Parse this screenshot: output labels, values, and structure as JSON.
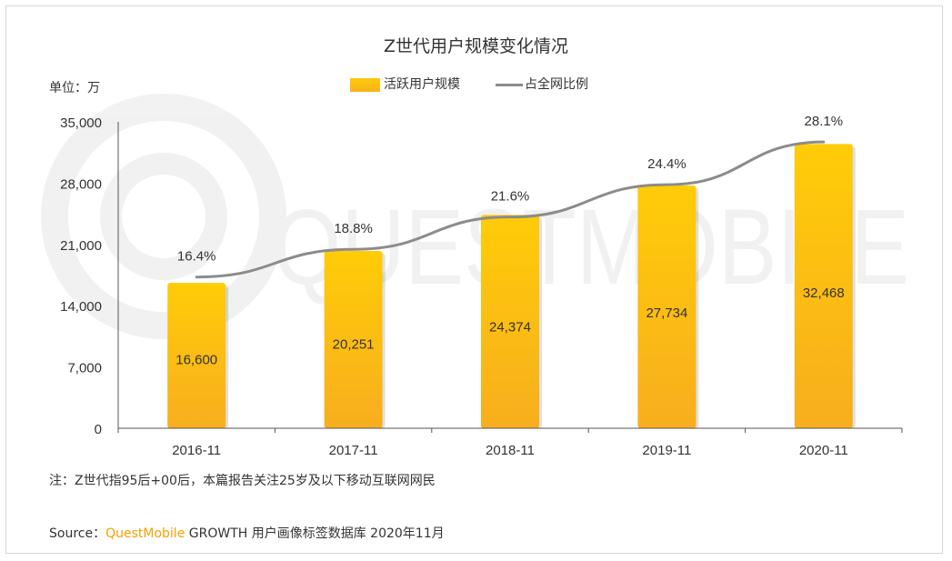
{
  "title": "Z世代用户规模变化情况",
  "unit_label": "单位：万",
  "legend": {
    "bar_label": "活跃用户规模",
    "line_label": "占全网比例"
  },
  "chart_data": {
    "type": "bar",
    "title": "Z世代用户规模变化情况",
    "xlabel": "",
    "ylabel": "单位：万",
    "categories": [
      "2016-11",
      "2017-11",
      "2018-11",
      "2019-11",
      "2020-11"
    ],
    "series": [
      {
        "name": "活跃用户规模",
        "type": "bar",
        "axis": "left",
        "values": [
          16600,
          20251,
          24374,
          27734,
          32468
        ],
        "value_labels": [
          "16,600",
          "20,251",
          "24,374",
          "27,734",
          "32,468"
        ],
        "color": "#ffc20e"
      },
      {
        "name": "占全网比例",
        "type": "line",
        "axis": "right",
        "values": [
          16.4,
          18.8,
          21.6,
          24.4,
          28.1
        ],
        "value_labels": [
          "16.4%",
          "18.8%",
          "21.6%",
          "24.4%",
          "28.1%"
        ],
        "color": "#8c8c8c"
      }
    ],
    "ylim": [
      0,
      35000
    ],
    "yticks": [
      0,
      7000,
      14000,
      21000,
      28000,
      35000
    ],
    "ytick_labels": [
      "0",
      "7,000",
      "14,000",
      "21,000",
      "28,000",
      "35,000"
    ],
    "grid": false,
    "legend_position": "top-center"
  },
  "note": "注：Z世代指95后+00后，本篇报告关注25岁及以下移动互联网网民",
  "source": {
    "prefix": "Source：",
    "brand": "QuestMobile",
    "rest": "GROWTH 用户画像标签数据库 2020年11月"
  },
  "watermark": "QUESTMOBILE",
  "colors": {
    "bar": "#ffc20e",
    "bar_dark": "#f7ae1d",
    "line": "#8c8c8c",
    "brand": "#f5a000"
  }
}
